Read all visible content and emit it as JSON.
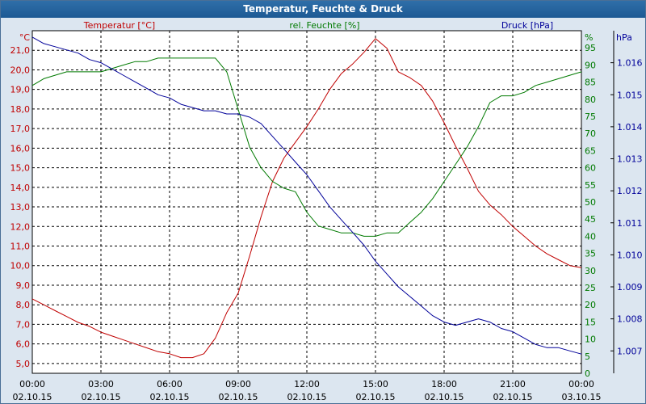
{
  "chart_data": {
    "type": "line",
    "title": "Temperatur, Feuchte & Druck",
    "x_ticks": [
      {
        "time": "00:00",
        "date": "02.10.15"
      },
      {
        "time": "03:00",
        "date": "02.10.15"
      },
      {
        "time": "06:00",
        "date": "02.10.15"
      },
      {
        "time": "09:00",
        "date": "02.10.15"
      },
      {
        "time": "12:00",
        "date": "02.10.15"
      },
      {
        "time": "15:00",
        "date": "02.10.15"
      },
      {
        "time": "18:00",
        "date": "02.10.15"
      },
      {
        "time": "21:00",
        "date": "02.10.15"
      },
      {
        "time": "00:00",
        "date": "03.10.15"
      }
    ],
    "axes": {
      "temperature": {
        "label": "Temperatur [°C]",
        "unit": "°C",
        "range": [
          4.5,
          22.0
        ],
        "ticks": [
          "5,0",
          "6,0",
          "7,0",
          "8,0",
          "9,0",
          "10,0",
          "11,0",
          "12,0",
          "13,0",
          "14,0",
          "15,0",
          "16,0",
          "17,0",
          "18,0",
          "19,0",
          "20,0",
          "21,0"
        ],
        "color": "#c00000"
      },
      "humidity": {
        "label": "rel. Feuchte [%]",
        "unit": "%",
        "range": [
          0,
          100
        ],
        "ticks": [
          "0",
          "5",
          "10",
          "15",
          "20",
          "25",
          "30",
          "35",
          "40",
          "45",
          "50",
          "55",
          "60",
          "65",
          "70",
          "75",
          "80",
          "85",
          "90",
          "95"
        ],
        "color": "#007a00"
      },
      "pressure": {
        "label": "Druck [hPa]",
        "unit": "hPa",
        "range": [
          1.0063,
          1.017
        ],
        "ticks": [
          "1.007",
          "1.008",
          "1.009",
          "1.010",
          "1.011",
          "1.012",
          "1.013",
          "1.014",
          "1.015",
          "1.016"
        ],
        "color": "#000099"
      }
    },
    "grid": true,
    "series": [
      {
        "name": "Temperatur [°C]",
        "axis": "temperature",
        "color": "#c00000",
        "x": [
          0,
          0.5,
          1,
          1.5,
          2,
          2.5,
          3,
          3.5,
          4,
          4.5,
          5,
          5.5,
          6,
          6.5,
          7,
          7.5,
          8,
          8.5,
          9,
          9.5,
          10,
          10.5,
          11,
          11.5,
          12,
          12.5,
          13,
          13.5,
          14,
          14.5,
          15,
          15.5,
          16,
          16.5,
          17,
          17.5,
          18,
          18.5,
          19,
          19.5,
          20,
          20.5,
          21,
          21.5,
          22,
          22.5,
          23,
          23.5,
          24
        ],
        "values": [
          8.3,
          8.0,
          7.7,
          7.4,
          7.1,
          6.9,
          6.6,
          6.4,
          6.2,
          6.0,
          5.8,
          5.6,
          5.5,
          5.3,
          5.3,
          5.5,
          6.3,
          7.6,
          8.6,
          10.5,
          12.5,
          14.3,
          15.5,
          16.3,
          17.1,
          18.0,
          19.0,
          19.8,
          20.3,
          20.9,
          21.6,
          21.1,
          19.9,
          19.6,
          19.2,
          18.4,
          17.3,
          16.1,
          15.0,
          13.8,
          13.1,
          12.6,
          12.0,
          11.5,
          11.0,
          10.6,
          10.3,
          10.0,
          9.9
        ]
      },
      {
        "name": "rel. Feuchte [%]",
        "axis": "humidity",
        "color": "#007a00",
        "x": [
          0,
          0.5,
          1,
          1.5,
          2,
          2.5,
          3,
          3.5,
          4,
          4.5,
          5,
          5.5,
          6,
          6.5,
          7,
          7.5,
          8,
          8.5,
          9,
          9.5,
          10,
          10.5,
          11,
          11.5,
          12,
          12.5,
          13,
          13.5,
          14,
          14.5,
          15,
          15.5,
          16,
          16.5,
          17,
          17.5,
          18,
          18.5,
          19,
          19.5,
          20,
          20.5,
          21,
          21.5,
          22,
          22.5,
          23,
          23.5,
          24
        ],
        "values": [
          84,
          86,
          87,
          88,
          88,
          88,
          88,
          89,
          90,
          91,
          91,
          92,
          92,
          92,
          92,
          92,
          92,
          88,
          77,
          66,
          60,
          56,
          54,
          53,
          47,
          43,
          42,
          41,
          41,
          40,
          40,
          41,
          41,
          44,
          47,
          51,
          56,
          61,
          66,
          72,
          79,
          81,
          81,
          82,
          84,
          85,
          86,
          87,
          88
        ]
      },
      {
        "name": "Druck [hPa]",
        "axis": "pressure",
        "color": "#000099",
        "x": [
          0,
          0.5,
          1,
          1.5,
          2,
          2.5,
          3,
          3.5,
          4,
          4.5,
          5,
          5.5,
          6,
          6.5,
          7,
          7.5,
          8,
          8.5,
          9,
          9.5,
          10,
          10.5,
          11,
          11.5,
          12,
          12.5,
          13,
          13.5,
          14,
          14.5,
          15,
          15.5,
          16,
          16.5,
          17,
          17.5,
          18,
          18.5,
          19,
          19.5,
          20,
          20.5,
          21,
          21.5,
          22,
          22.5,
          23,
          23.5,
          24
        ],
        "values": [
          1.0168,
          1.0166,
          1.0165,
          1.0164,
          1.0163,
          1.0161,
          1.016,
          1.0158,
          1.0156,
          1.0154,
          1.0152,
          1.015,
          1.0149,
          1.0147,
          1.0146,
          1.0145,
          1.0145,
          1.0144,
          1.0144,
          1.0143,
          1.0141,
          1.0137,
          1.0133,
          1.0129,
          1.0125,
          1.012,
          1.0115,
          1.0111,
          1.0107,
          1.0103,
          1.0098,
          1.0094,
          1.009,
          1.0087,
          1.0084,
          1.0081,
          1.0079,
          1.0078,
          1.0079,
          1.008,
          1.0079,
          1.0077,
          1.0076,
          1.0074,
          1.0072,
          1.0071,
          1.0071,
          1.007,
          1.0069
        ]
      }
    ]
  }
}
